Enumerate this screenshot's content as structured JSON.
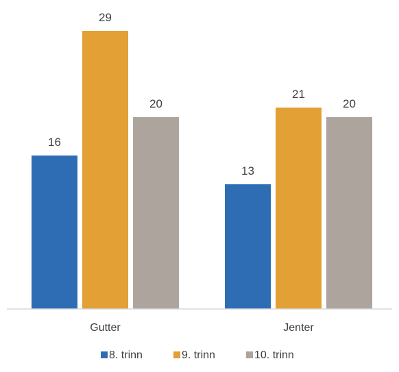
{
  "chart_data": {
    "type": "bar",
    "title": "",
    "xlabel": "",
    "ylabel": "",
    "categories": [
      "Gutter",
      "Jenter"
    ],
    "series": [
      {
        "name": "8. trinn",
        "values": [
          16,
          13
        ],
        "color": "#2E6DB4"
      },
      {
        "name": "9. trinn",
        "values": [
          29,
          21
        ],
        "color": "#E3A034"
      },
      {
        "name": "10. trinn",
        "values": [
          20,
          20
        ],
        "color": "#ADA59D"
      }
    ],
    "ylim": [
      0,
      33
    ],
    "data_labels": true,
    "grid": false,
    "legend": "bottom"
  }
}
